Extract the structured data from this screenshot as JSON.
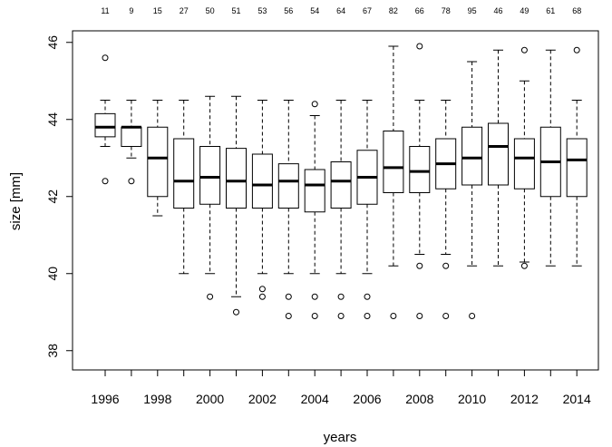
{
  "chart_data": {
    "type": "boxplot",
    "xlabel": "years",
    "ylabel": "size [mm]",
    "ylim": [
      37.5,
      46.3
    ],
    "y_ticks": [
      38,
      40,
      42,
      44,
      46
    ],
    "x_tick_labels": [
      "1996",
      "1998",
      "2000",
      "2002",
      "2004",
      "2006",
      "2008",
      "2010",
      "2012",
      "2014"
    ],
    "boxes": [
      {
        "year": "1996",
        "n": "11",
        "lower_whisker": 43.3,
        "q1": 43.55,
        "median": 43.8,
        "q3": 44.15,
        "upper_whisker": 44.5,
        "outliers": [
          45.6,
          42.4
        ]
      },
      {
        "year": "1997",
        "n": "9",
        "lower_whisker": 43.0,
        "q1": 43.3,
        "median": 43.8,
        "q3": 43.8,
        "upper_whisker": 44.5,
        "outliers": [
          42.4
        ]
      },
      {
        "year": "1998",
        "n": "15",
        "lower_whisker": 41.5,
        "q1": 42.0,
        "median": 43.0,
        "q3": 43.8,
        "upper_whisker": 44.5,
        "outliers": []
      },
      {
        "year": "1999",
        "n": "27",
        "lower_whisker": 40.0,
        "q1": 41.7,
        "median": 42.4,
        "q3": 43.5,
        "upper_whisker": 44.5,
        "outliers": []
      },
      {
        "year": "2000",
        "n": "50",
        "lower_whisker": 40.0,
        "q1": 41.8,
        "median": 42.5,
        "q3": 43.3,
        "upper_whisker": 44.6,
        "outliers": [
          39.4
        ]
      },
      {
        "year": "2001",
        "n": "51",
        "lower_whisker": 39.4,
        "q1": 41.7,
        "median": 42.4,
        "q3": 43.25,
        "upper_whisker": 44.6,
        "outliers": [
          39.0
        ]
      },
      {
        "year": "2002",
        "n": "53",
        "lower_whisker": 40.0,
        "q1": 41.7,
        "median": 42.3,
        "q3": 43.1,
        "upper_whisker": 44.5,
        "outliers": [
          39.6,
          39.4
        ]
      },
      {
        "year": "2003",
        "n": "56",
        "lower_whisker": 40.0,
        "q1": 41.7,
        "median": 42.4,
        "q3": 42.85,
        "upper_whisker": 44.5,
        "outliers": [
          39.4,
          38.9
        ]
      },
      {
        "year": "2004",
        "n": "54",
        "lower_whisker": 40.0,
        "q1": 41.6,
        "median": 42.3,
        "q3": 42.7,
        "upper_whisker": 44.1,
        "outliers": [
          44.4,
          39.4,
          38.9
        ]
      },
      {
        "year": "2005",
        "n": "64",
        "lower_whisker": 40.0,
        "q1": 41.7,
        "median": 42.4,
        "q3": 42.9,
        "upper_whisker": 44.5,
        "outliers": [
          39.4,
          38.9
        ]
      },
      {
        "year": "2006",
        "n": "67",
        "lower_whisker": 40.0,
        "q1": 41.8,
        "median": 42.5,
        "q3": 43.2,
        "upper_whisker": 44.5,
        "outliers": [
          39.4,
          38.9
        ]
      },
      {
        "year": "2007",
        "n": "82",
        "lower_whisker": 40.2,
        "q1": 42.1,
        "median": 42.75,
        "q3": 43.7,
        "upper_whisker": 45.9,
        "outliers": [
          38.9
        ]
      },
      {
        "year": "2008",
        "n": "66",
        "lower_whisker": 40.5,
        "q1": 42.1,
        "median": 42.65,
        "q3": 43.3,
        "upper_whisker": 44.5,
        "outliers": [
          45.9,
          40.2,
          38.9
        ]
      },
      {
        "year": "2009",
        "n": "78",
        "lower_whisker": 40.5,
        "q1": 42.2,
        "median": 42.85,
        "q3": 43.5,
        "upper_whisker": 44.5,
        "outliers": [
          40.2,
          38.9
        ]
      },
      {
        "year": "2010",
        "n": "95",
        "lower_whisker": 40.2,
        "q1": 42.3,
        "median": 43.0,
        "q3": 43.8,
        "upper_whisker": 45.5,
        "outliers": [
          38.9
        ]
      },
      {
        "year": "2011",
        "n": "46",
        "lower_whisker": 40.2,
        "q1": 42.3,
        "median": 43.3,
        "q3": 43.9,
        "upper_whisker": 45.8,
        "outliers": []
      },
      {
        "year": "2012",
        "n": "49",
        "lower_whisker": 40.3,
        "q1": 42.2,
        "median": 43.0,
        "q3": 43.5,
        "upper_whisker": 45.0,
        "outliers": [
          45.8,
          40.2
        ]
      },
      {
        "year": "2013",
        "n": "61",
        "lower_whisker": 40.2,
        "q1": 42.0,
        "median": 42.9,
        "q3": 43.8,
        "upper_whisker": 45.8,
        "outliers": []
      },
      {
        "year": "2014",
        "n": "68",
        "lower_whisker": 40.2,
        "q1": 42.0,
        "median": 42.95,
        "q3": 43.5,
        "upper_whisker": 44.5,
        "outliers": [
          45.8
        ]
      }
    ]
  }
}
